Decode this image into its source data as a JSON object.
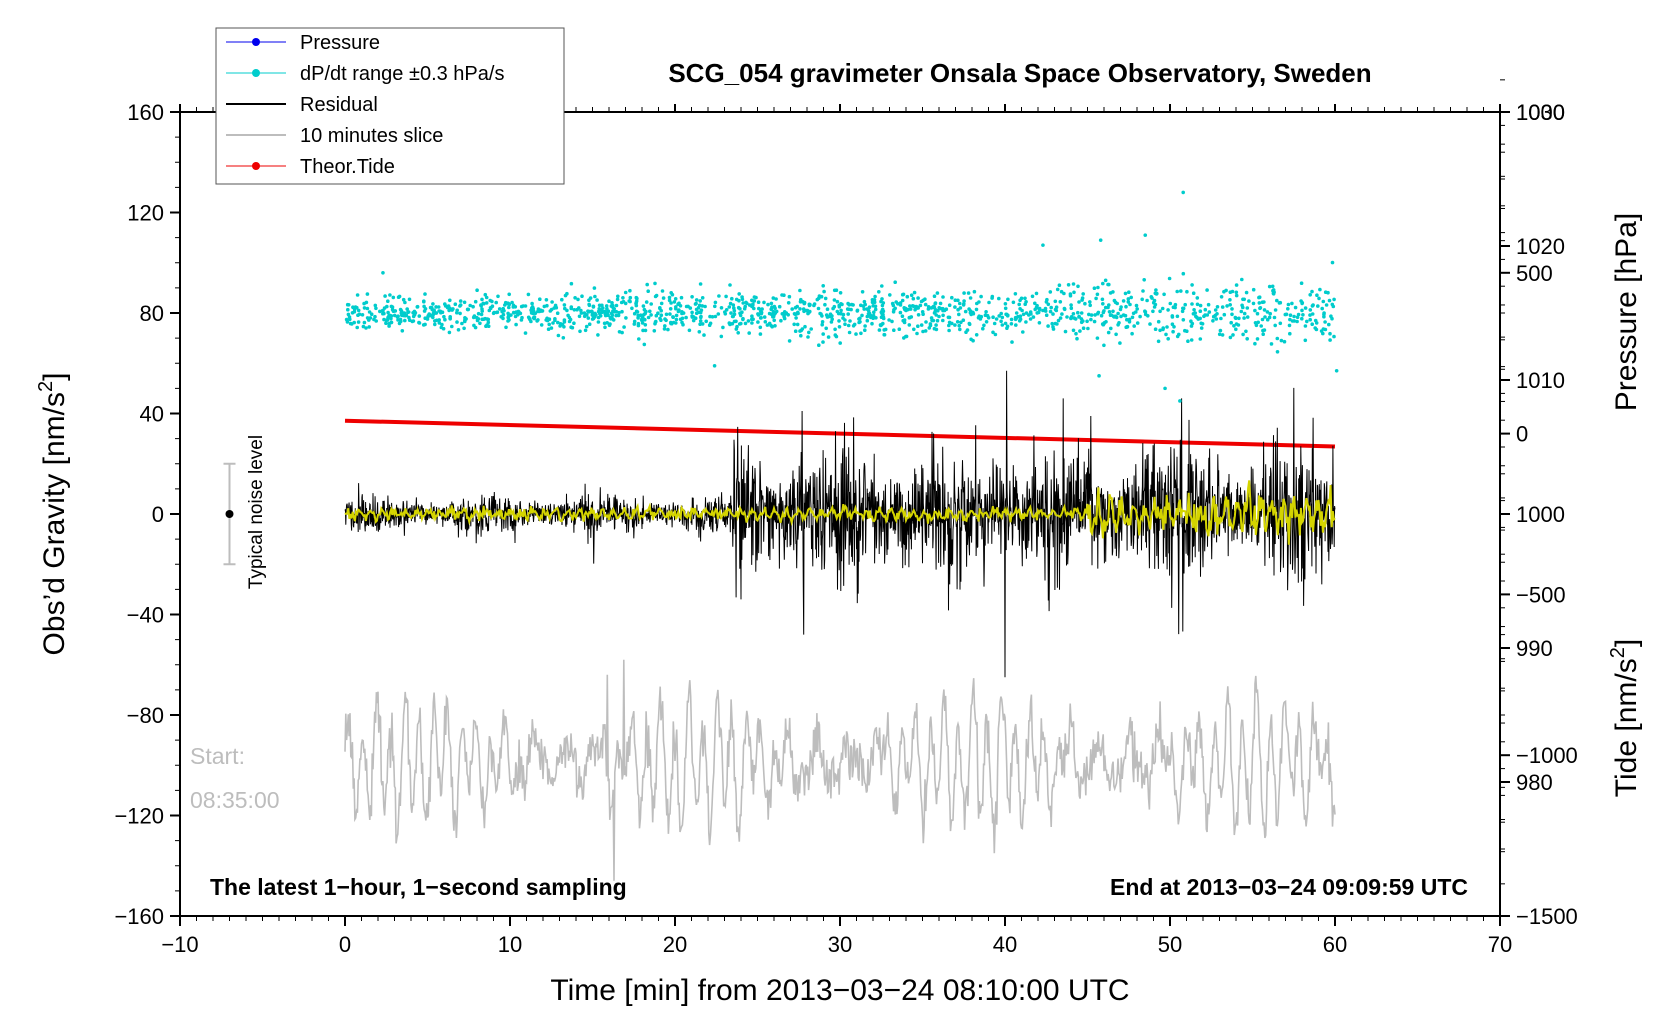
{
  "chart_data": {
    "type": "line",
    "title": "SCG_054 gravimeter Onsala Space Observatory, Sweden",
    "xlabel": "Time [min] from 2013−03−24 08:10:00 UTC",
    "ylabel_left": "Obs’d Gravity [nm/s",
    "ylabel_left_sup": "2",
    "ylabel_left_end": "]",
    "ylabel_right_pressure": "Pressure [hPa]",
    "ylabel_right_tide": "Tide [nm/s",
    "ylabel_right_tide_sup": "2",
    "ylabel_right_tide_end": "]",
    "xlim": [
      -10,
      70
    ],
    "ylim": [
      -160,
      160
    ],
    "pressure_lim": [
      970,
      1030
    ],
    "tide_lim": [
      -1500,
      1000
    ],
    "x_ticks": [
      "−10",
      "0",
      "10",
      "20",
      "30",
      "40",
      "50",
      "60",
      "70"
    ],
    "x_tick_values": [
      -10,
      0,
      10,
      20,
      30,
      40,
      50,
      60,
      70
    ],
    "y_ticks": [
      "160",
      "120",
      "80",
      "40",
      "0",
      "−40",
      "−80",
      "−120",
      "−160"
    ],
    "y_tick_values": [
      160,
      120,
      80,
      40,
      0,
      -40,
      -80,
      -120,
      -160
    ],
    "pressure_ticks": [
      "1030",
      "1020",
      "1010",
      "1000",
      "990",
      "980"
    ],
    "pressure_tick_values": [
      1030,
      1020,
      1010,
      1000,
      990,
      980
    ],
    "tide_ticks": [
      "1000",
      "500",
      "0",
      "−500",
      "−1000",
      "−1500"
    ],
    "tide_tick_values": [
      1000,
      500,
      0,
      -500,
      -1000,
      -1500
    ],
    "legend": [
      {
        "label": "Pressure",
        "color": "#0000ee",
        "marker": true
      },
      {
        "label": "dP/dt range ±0.3 hPa/s",
        "color": "#00cccc",
        "marker": true
      },
      {
        "label": "Residual",
        "color": "#000000",
        "marker": false
      },
      {
        "label": "10 minutes slice",
        "color": "#bdbdbd",
        "marker": false
      },
      {
        "label": "Theor.Tide",
        "color": "#ee0000",
        "marker": true
      }
    ],
    "series": [
      {
        "name": "dP/dt range ±0.3 hPa/s",
        "color": "#00cccc",
        "style": "scatter",
        "x_range": [
          0,
          60
        ],
        "center": 80,
        "typical_spread": 5,
        "outliers": [
          [
            50.8,
            128
          ],
          [
            48.5,
            111
          ],
          [
            45.8,
            109
          ],
          [
            42.3,
            107
          ],
          [
            46.1,
            93
          ],
          [
            61.2,
            96
          ],
          [
            22.4,
            59
          ],
          [
            45.6,
            70
          ],
          [
            49.7,
            50
          ],
          [
            60.1,
            57
          ],
          [
            45.7,
            55
          ],
          [
            50.6,
            45
          ],
          [
            2.3,
            96
          ]
        ]
      },
      {
        "name": "Residual",
        "color": "#000000",
        "style": "line",
        "x_range": [
          0,
          60
        ],
        "center": 0,
        "amplitude_segments": [
          [
            0,
            23.5,
            6
          ],
          [
            23.5,
            60,
            22
          ]
        ],
        "spikes": [
          [
            24.0,
            -34
          ],
          [
            27.7,
            41
          ],
          [
            27.8,
            -48
          ],
          [
            40.1,
            57
          ],
          [
            40.0,
            -65
          ],
          [
            45.2,
            39
          ],
          [
            50.7,
            46
          ],
          [
            59.2,
            -28
          ]
        ]
      },
      {
        "name": "Yellow smoothed residual",
        "color": "#d4d400",
        "style": "line",
        "x_range": [
          0,
          60
        ],
        "center": 0,
        "amplitude_segments": [
          [
            0,
            45,
            2
          ],
          [
            45,
            60,
            7
          ]
        ]
      },
      {
        "name": "10 minutes slice",
        "color": "#bdbdbd",
        "style": "line",
        "x_range": [
          0,
          60
        ],
        "center": -99,
        "amplitude": 22,
        "extremes": [
          [
            16.3,
            -146
          ],
          [
            16.9,
            -58
          ],
          [
            15.9,
            -64
          ]
        ]
      },
      {
        "name": "Theor.Tide",
        "color": "#ee0000",
        "style": "line",
        "x": [
          0,
          60
        ],
        "tide_values": [
          40,
          -40
        ]
      }
    ],
    "noise_bar": {
      "x": -7,
      "center": 0,
      "low": -20,
      "high": 20
    },
    "annotations": {
      "noise_label": "Typical noise level",
      "start_label": "Start:",
      "start_time": "08:35:00",
      "latest_note": "The latest 1−hour, 1−second sampling",
      "end_note": "End at 2013−03−24 09:09:59 UTC"
    }
  }
}
